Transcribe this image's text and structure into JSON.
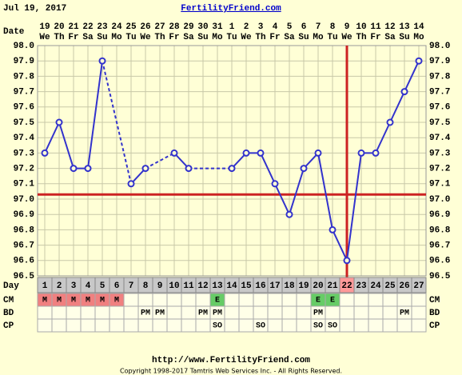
{
  "header": {
    "date": "Jul 19, 2017",
    "site": "FertilityFriend.com"
  },
  "chart_data": {
    "type": "line",
    "row_labels": {
      "date": "Date",
      "day": "Day"
    },
    "dates": [
      19,
      20,
      21,
      22,
      23,
      24,
      25,
      26,
      27,
      28,
      29,
      30,
      31,
      1,
      2,
      3,
      4,
      5,
      6,
      7,
      8,
      9,
      10,
      11,
      12,
      13,
      14
    ],
    "weekdays": [
      "We",
      "Th",
      "Fr",
      "Sa",
      "Su",
      "Mo",
      "Tu",
      "We",
      "Th",
      "Fr",
      "Sa",
      "Su",
      "Mo",
      "Tu",
      "We",
      "Th",
      "Fr",
      "Sa",
      "Su",
      "Mo",
      "Tu",
      "We",
      "Th",
      "Fr",
      "Sa",
      "Su",
      "Mo"
    ],
    "x": [
      1,
      2,
      3,
      4,
      5,
      6,
      7,
      8,
      9,
      10,
      11,
      12,
      13,
      14,
      15,
      16,
      17,
      18,
      19,
      20,
      21,
      22,
      23,
      24,
      25,
      26,
      27
    ],
    "xlim": [
      0.5,
      27.5
    ],
    "series": [
      {
        "color": "#3333cc",
        "values": [
          97.3,
          97.5,
          97.2,
          97.2,
          97.9,
          null,
          97.1,
          97.2,
          null,
          97.3,
          97.2,
          null,
          null,
          97.2,
          97.3,
          97.3,
          97.1,
          96.9,
          97.2,
          97.3,
          96.8,
          96.6,
          97.3,
          97.3,
          97.5,
          97.7,
          97.9
        ]
      }
    ],
    "ylim": [
      96.5,
      98.0
    ],
    "yticks": [
      {
        "value": 98.0,
        "label": "98.0"
      },
      97.9,
      97.8,
      97.7,
      97.6,
      97.5,
      97.4,
      97.3,
      97.2,
      97.1,
      {
        "value": 97.0,
        "label": "97.0"
      },
      96.9,
      96.8,
      96.7,
      96.6,
      96.5
    ],
    "grid": true,
    "coverline": 97.03,
    "ovulation_day": 22,
    "marker_color": "#cc2222",
    "rows": [
      {
        "label": "CM",
        "values": [
          "M",
          "M",
          "M",
          "M",
          "M",
          "M",
          null,
          null,
          null,
          null,
          null,
          null,
          "E",
          null,
          null,
          null,
          null,
          null,
          null,
          "E",
          "E",
          null,
          null,
          null,
          null,
          null,
          null
        ]
      },
      {
        "label": "BD",
        "values": [
          null,
          null,
          null,
          null,
          null,
          null,
          null,
          "PM",
          "PM",
          null,
          null,
          "PM",
          "PM",
          null,
          null,
          null,
          null,
          null,
          null,
          "PM",
          null,
          null,
          null,
          null,
          null,
          "PM",
          null
        ]
      },
      {
        "label": "CP",
        "values": [
          null,
          null,
          null,
          null,
          null,
          null,
          null,
          null,
          null,
          null,
          null,
          null,
          "SO",
          null,
          null,
          "SO",
          null,
          null,
          null,
          "SO",
          "SO",
          null,
          null,
          null,
          null,
          null,
          null
        ]
      }
    ]
  },
  "footer": {
    "url": "http://www.FertilityFriend.com",
    "copyright": "Copyright 1998-2017 Tamtris Web Services Inc. - All Rights Reserved."
  }
}
